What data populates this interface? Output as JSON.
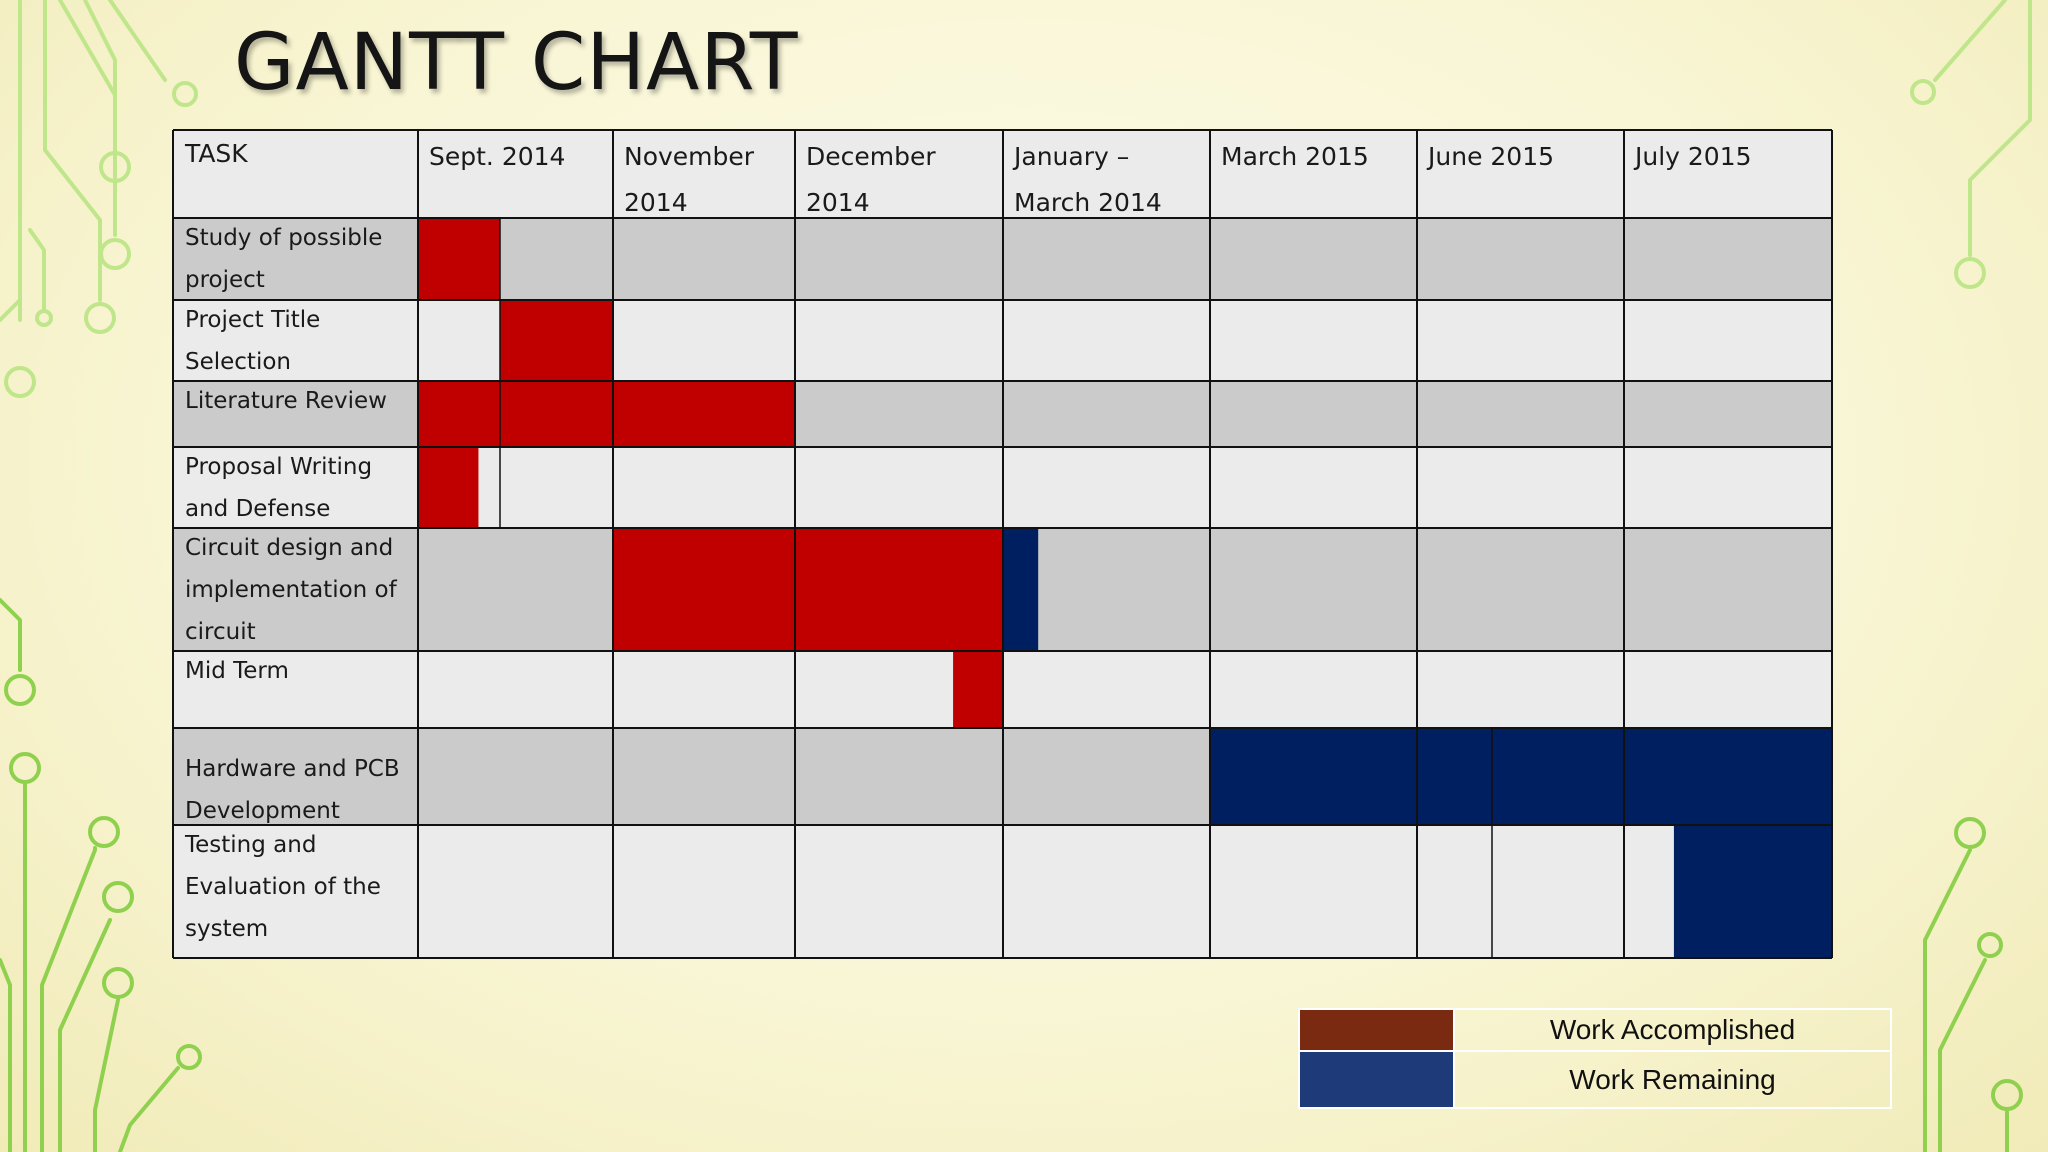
{
  "title": "GANTT CHART",
  "colors": {
    "accomplished": "#c00000",
    "remaining": "#001f60",
    "legend_accomplished": "#7b2a12",
    "legend_remaining": "#1f3a78",
    "row_dark": "#cbcbcb",
    "row_light": "#ebebeb",
    "header": "#ebebeb",
    "circuit": "#8fd14f"
  },
  "chart_data": {
    "type": "gantt",
    "header_task": "TASK",
    "columns": [
      [
        "Sept. 2014"
      ],
      [
        "November",
        "2014"
      ],
      [
        "December",
        "2014"
      ],
      [
        "January –",
        "March 2014"
      ],
      [
        "March 2015"
      ],
      [
        "June 2015"
      ],
      [
        "July 2015"
      ]
    ],
    "tasks": [
      {
        "label": [
          "Study of possible",
          "project"
        ],
        "bars": [
          {
            "start": 0.0,
            "end": 0.42,
            "status": "accomplished"
          }
        ]
      },
      {
        "label": [
          "Project Title",
          "Selection"
        ],
        "bars": [
          {
            "start": 0.42,
            "end": 1.0,
            "status": "accomplished"
          }
        ]
      },
      {
        "label": [
          "Literature Review"
        ],
        "bars": [
          {
            "start": 0.0,
            "end": 2.0,
            "status": "accomplished"
          }
        ]
      },
      {
        "label": [
          "Proposal Writing",
          "and Defense"
        ],
        "bars": [
          {
            "start": 0.0,
            "end": 0.31,
            "status": "accomplished"
          }
        ]
      },
      {
        "label": [
          "Circuit design and",
          "implementation of",
          "circuit"
        ],
        "bars": [
          {
            "start": 1.0,
            "end": 3.0,
            "status": "accomplished"
          },
          {
            "start": 3.0,
            "end": 3.17,
            "status": "remaining"
          }
        ]
      },
      {
        "label": [
          "Mid Term"
        ],
        "bars": [
          {
            "start": 2.76,
            "end": 3.0,
            "status": "accomplished"
          }
        ]
      },
      {
        "label": [
          "Hardware and  PCB",
          "Development"
        ],
        "bars": [
          {
            "start": 4.0,
            "end": 7.0,
            "status": "remaining"
          }
        ]
      },
      {
        "label": [
          " Testing and",
          "Evaluation  of the",
          "system"
        ],
        "bars": [
          {
            "start": 6.24,
            "end": 7.0,
            "status": "remaining"
          }
        ]
      }
    ],
    "legend": [
      {
        "label": "Work Accomplished",
        "status": "accomplished"
      },
      {
        "label": "Work Remaining",
        "status": "remaining"
      }
    ]
  }
}
